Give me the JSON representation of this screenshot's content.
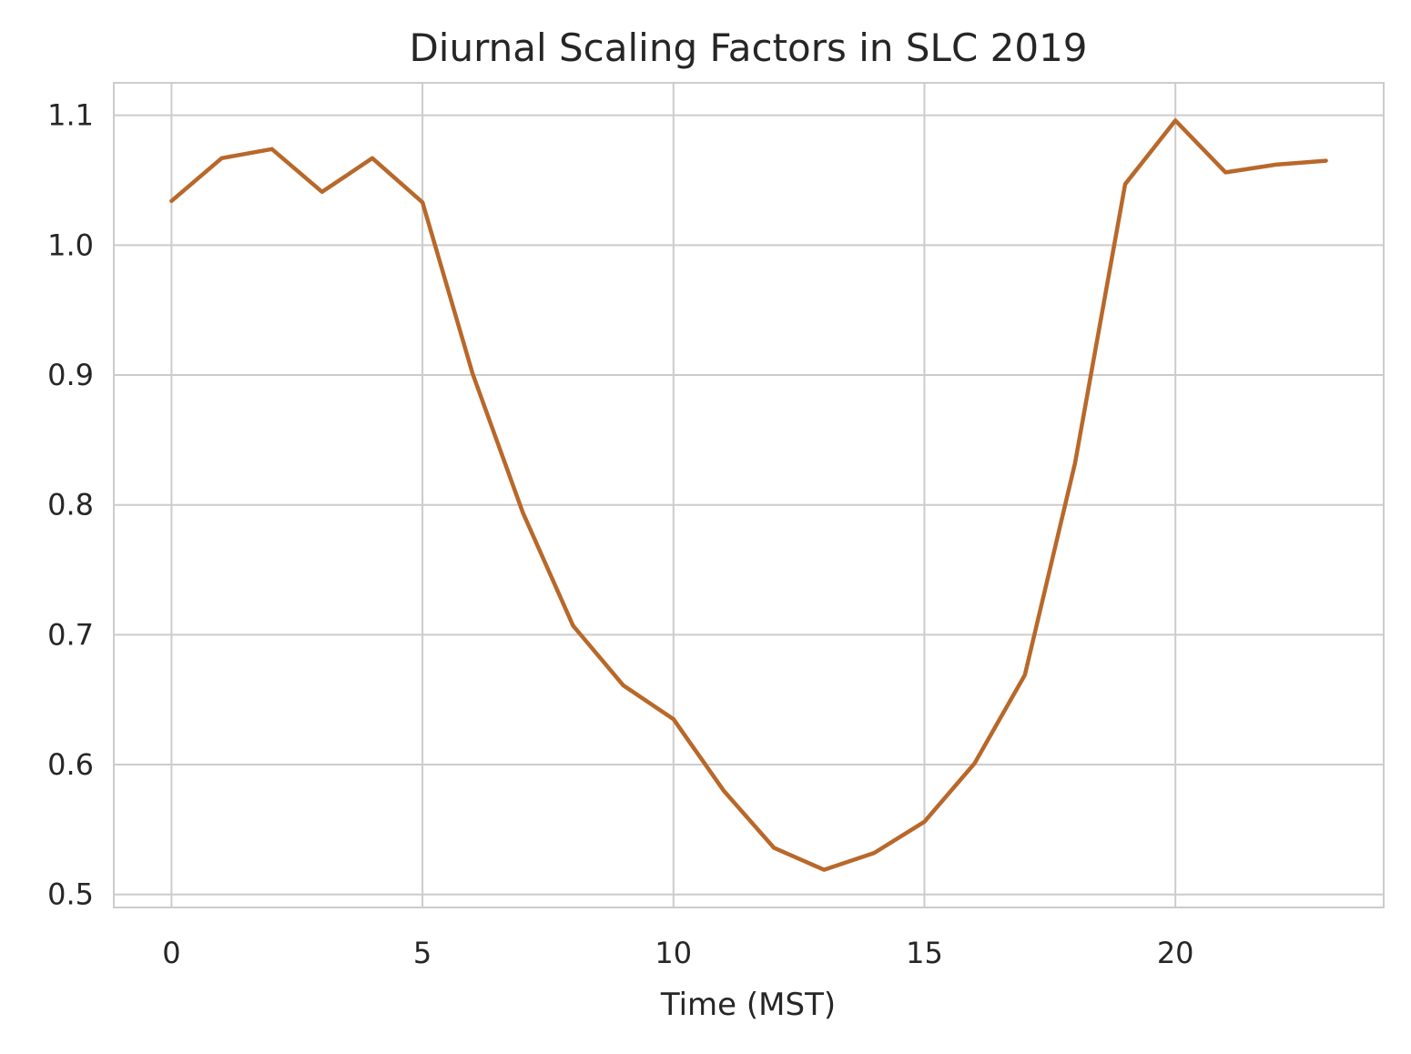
{
  "chart_data": {
    "type": "line",
    "title": "Diurnal Scaling Factors in SLC 2019",
    "xlabel": "Time (MST)",
    "ylabel": "",
    "xlim": [
      -1.15,
      24.15
    ],
    "ylim": [
      0.49,
      1.125
    ],
    "xticks": [
      0,
      5,
      10,
      15,
      20
    ],
    "yticks": [
      0.5,
      0.6,
      0.7,
      0.8,
      0.9,
      1.0,
      1.1
    ],
    "ytick_labels": [
      "0.5",
      "0.6",
      "0.7",
      "0.8",
      "0.9",
      "1.0",
      "1.1"
    ],
    "grid": true,
    "line_color": "#b8682a",
    "grid_color": "#cccccc",
    "series": [
      {
        "x": [
          0,
          1,
          2,
          3,
          4,
          5,
          6,
          7,
          8,
          9,
          10,
          11,
          12,
          13,
          14,
          15,
          16,
          17,
          18,
          19,
          20,
          21,
          22,
          23
        ],
        "values": [
          1.034,
          1.067,
          1.074,
          1.041,
          1.067,
          1.033,
          0.901,
          0.794,
          0.707,
          0.661,
          0.635,
          0.58,
          0.536,
          0.519,
          0.532,
          0.556,
          0.601,
          0.669,
          0.832,
          1.047,
          1.096,
          1.056,
          1.062,
          1.065
        ]
      }
    ]
  }
}
